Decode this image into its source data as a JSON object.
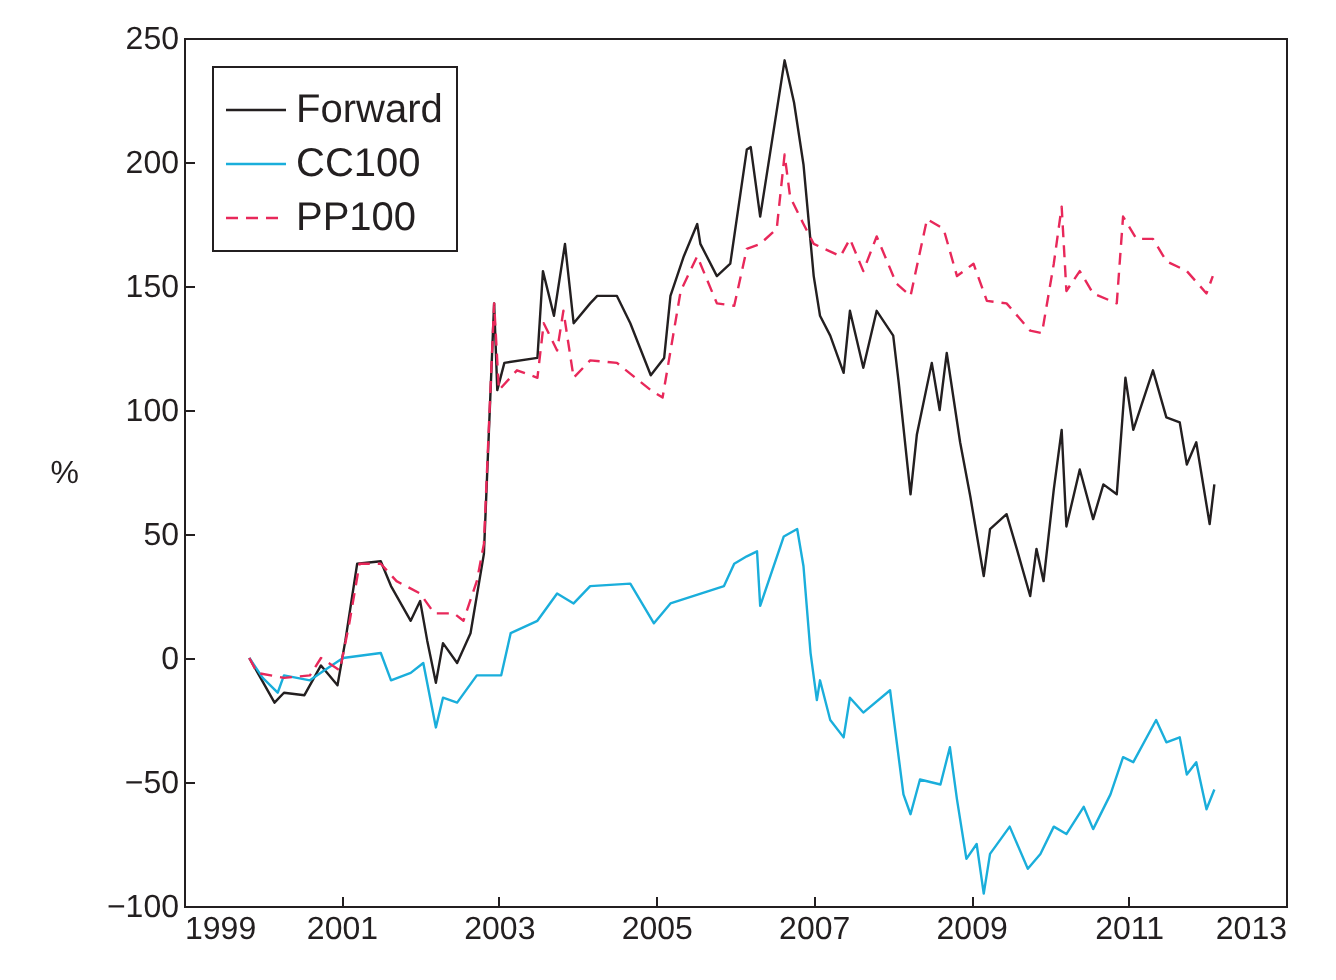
{
  "chart_data": {
    "type": "line",
    "ylabel": "%",
    "xlim": [
      1999,
      2013
    ],
    "xticks": [
      1999,
      2001,
      2003,
      2005,
      2007,
      2009,
      2011,
      2013
    ],
    "ylim": [
      -100,
      250
    ],
    "yticks": [
      -100,
      -50,
      0,
      50,
      100,
      150,
      200,
      250
    ],
    "grid": false,
    "legend": "top left",
    "marker": "none",
    "series": [
      {
        "name": "Forward",
        "color": "#231f20",
        "line_style": "solid",
        "x": [
          1999.83,
          2000.15,
          2000.27,
          2000.53,
          2000.74,
          2000.95,
          2001.05,
          2001.2,
          2001.5,
          2001.63,
          2001.88,
          2002.0,
          2002.09,
          2002.2,
          2002.29,
          2002.47,
          2002.64,
          2002.81,
          2002.94,
          2002.98,
          2003.07,
          2003.49,
          2003.56,
          2003.7,
          2003.84,
          2003.95,
          2004.16,
          2004.25,
          2004.5,
          2004.67,
          2004.93,
          2005.1,
          2005.18,
          2005.35,
          2005.52,
          2005.56,
          2005.77,
          2005.94,
          2006.15,
          2006.2,
          2006.32,
          2006.63,
          2006.75,
          2006.87,
          2007.0,
          2007.08,
          2007.21,
          2007.38,
          2007.46,
          2007.63,
          2007.8,
          2008.01,
          2008.08,
          2008.23,
          2008.31,
          2008.5,
          2008.6,
          2008.69,
          2008.86,
          2008.99,
          2009.16,
          2009.24,
          2009.45,
          2009.58,
          2009.75,
          2009.83,
          2009.92,
          2010.05,
          2010.15,
          2010.21,
          2010.38,
          2010.55,
          2010.68,
          2010.85,
          2010.96,
          2011.06,
          2011.31,
          2011.48,
          2011.65,
          2011.74,
          2011.86,
          2012.03,
          2012.09
        ],
        "values": [
          0,
          -18,
          -14,
          -15,
          -3,
          -11,
          7,
          38,
          39,
          29,
          15,
          23,
          7,
          -10,
          6,
          -2,
          10,
          42,
          143,
          108,
          119,
          121,
          156,
          138,
          167,
          135,
          143,
          146,
          146,
          135,
          114,
          121,
          146,
          162,
          175,
          167,
          154,
          159,
          205,
          206,
          178,
          241,
          224,
          199,
          154,
          138,
          130,
          115,
          140,
          117,
          140,
          130,
          111,
          66,
          90,
          119,
          100,
          123,
          87,
          65,
          33,
          52,
          58,
          44,
          25,
          44,
          31,
          68,
          92,
          53,
          76,
          56,
          70,
          66,
          113,
          92,
          116,
          97,
          95,
          78,
          87,
          54,
          70
        ]
      },
      {
        "name": "CC100",
        "color": "#1aaedb",
        "line_style": "solid",
        "x": [
          1999.83,
          2000.0,
          2000.19,
          2000.27,
          2000.6,
          2000.78,
          2001.02,
          2001.5,
          2001.63,
          2001.88,
          2002.04,
          2002.2,
          2002.29,
          2002.47,
          2002.72,
          2003.03,
          2003.15,
          2003.49,
          2003.74,
          2003.95,
          2004.16,
          2004.67,
          2004.97,
          2005.18,
          2005.86,
          2005.99,
          2006.15,
          2006.28,
          2006.32,
          2006.62,
          2006.79,
          2006.87,
          2006.96,
          2007.04,
          2007.08,
          2007.21,
          2007.38,
          2007.46,
          2007.63,
          2007.97,
          2008.14,
          2008.23,
          2008.35,
          2008.61,
          2008.73,
          2008.82,
          2008.94,
          2009.07,
          2009.16,
          2009.24,
          2009.49,
          2009.72,
          2009.88,
          2010.05,
          2010.21,
          2010.43,
          2010.55,
          2010.77,
          2010.93,
          2011.06,
          2011.35,
          2011.48,
          2011.65,
          2011.74,
          2011.86,
          2011.99,
          2012.09
        ],
        "values": [
          0,
          -8,
          -14,
          -7,
          -9,
          -5,
          0,
          2,
          -9,
          -6,
          -2,
          -28,
          -16,
          -18,
          -7,
          -7,
          10,
          15,
          26,
          22,
          29,
          30,
          14,
          22,
          29,
          38,
          41,
          43,
          21,
          49,
          52,
          37,
          2,
          -17,
          -9,
          -25,
          -32,
          -16,
          -22,
          -13,
          -55,
          -63,
          -49,
          -51,
          -36,
          -57,
          -81,
          -75,
          -95,
          -79,
          -68,
          -85,
          -79,
          -68,
          -71,
          -60,
          -69,
          -55,
          -40,
          -42,
          -25,
          -34,
          -32,
          -47,
          -42,
          -61,
          -53
        ]
      },
      {
        "name": "PP100",
        "color": "#e8285a",
        "line_style": "dashed",
        "x": [
          1999.83,
          1999.93,
          2000.27,
          2000.6,
          2000.74,
          2000.98,
          2001.1,
          2001.23,
          2001.5,
          2001.7,
          2002.0,
          2002.18,
          2002.43,
          2002.55,
          2002.72,
          2002.81,
          2002.94,
          2003.0,
          2003.23,
          2003.49,
          2003.57,
          2003.74,
          2003.82,
          2003.95,
          2004.16,
          2004.5,
          2004.93,
          2005.08,
          2005.31,
          2005.52,
          2005.77,
          2005.99,
          2006.15,
          2006.32,
          2006.53,
          2006.63,
          2006.7,
          2006.87,
          2007.0,
          2007.34,
          2007.46,
          2007.63,
          2007.8,
          2008.05,
          2008.23,
          2008.44,
          2008.65,
          2008.82,
          2009.03,
          2009.2,
          2009.45,
          2009.75,
          2009.9,
          2010.05,
          2010.15,
          2010.21,
          2010.38,
          2010.55,
          2010.85,
          2010.93,
          2011.1,
          2011.31,
          2011.48,
          2011.74,
          2011.99,
          2012.07
        ],
        "values": [
          0,
          -6,
          -8,
          -7,
          0,
          -5,
          14,
          38,
          38,
          31,
          26,
          18,
          18,
          15,
          31,
          46,
          143,
          108,
          116,
          113,
          135,
          124,
          140,
          113,
          120,
          119,
          108,
          105,
          148,
          162,
          143,
          142,
          165,
          167,
          173,
          203,
          186,
          175,
          167,
          162,
          169,
          156,
          170,
          151,
          146,
          177,
          173,
          154,
          159,
          144,
          143,
          132,
          131,
          159,
          182,
          148,
          156,
          147,
          143,
          178,
          169,
          169,
          160,
          156,
          147,
          154
        ]
      }
    ]
  }
}
